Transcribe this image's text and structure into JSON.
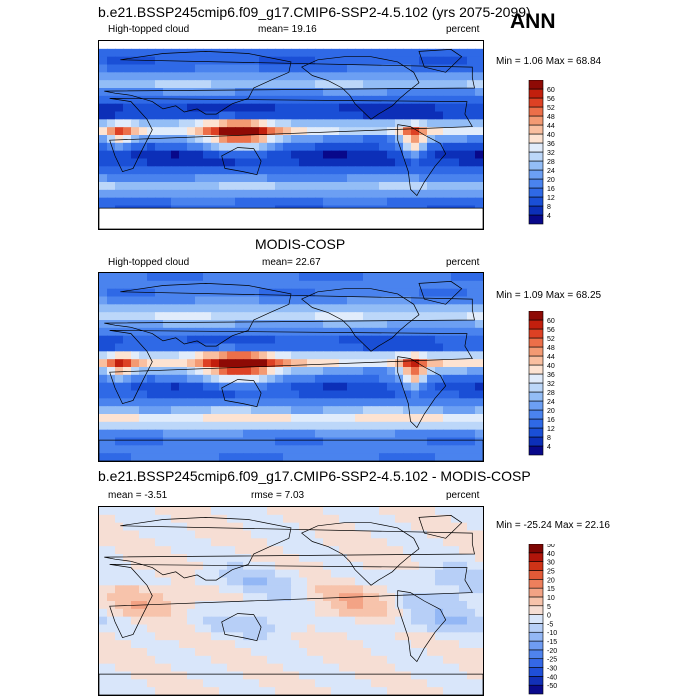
{
  "season_label": "ANN",
  "panels": [
    {
      "title": "b.e21.BSSP245cmip6.f09_g17.CMIP6-SSP2-4.5.102 (yrs 2075-2099)",
      "left_label": "High-topped cloud",
      "center_label": "mean=  19.16",
      "right_label": "percent",
      "minmax": "Min =  1.06 Max = 68.84"
    },
    {
      "title": "MODIS-COSP",
      "left_label": "High-topped cloud",
      "center_label": "mean=  22.67",
      "right_label": "percent",
      "minmax": "Min =  1.09 Max = 68.25"
    },
    {
      "title": "b.e21.BSSP245cmip6.f09_g17.CMIP6-SSP2-4.5.102 - MODIS-COSP",
      "left_label": "mean =  -3.51",
      "center_label": "rmse =  7.03",
      "right_label": "percent",
      "minmax": "Min = -25.24 Max = 22.16"
    }
  ],
  "chart_data": [
    {
      "type": "heatmap",
      "title": "b.e21.BSSP245cmip6.f09_g17.CMIP6-SSP2-4.5.102 (yrs 2075-2099)",
      "variable": "High-topped cloud",
      "units": "percent",
      "mean": 19.16,
      "min": 1.06,
      "max": 68.84,
      "colorbar_levels": [
        4,
        8,
        12,
        16,
        20,
        24,
        28,
        32,
        36,
        40,
        44,
        48,
        52,
        56,
        60
      ],
      "colorbar_colors": [
        "#08088a",
        "#0c2fb8",
        "#1a4fd6",
        "#2f69e6",
        "#4a83ee",
        "#6c9ff3",
        "#93bdf6",
        "#bcd7f9",
        "#e1ecfb",
        "#fde3d2",
        "#f9bfa0",
        "#f39a73",
        "#ec6f49",
        "#dd4124",
        "#c21f0d",
        "#8e0a05"
      ]
    },
    {
      "type": "heatmap",
      "title": "MODIS-COSP",
      "variable": "High-topped cloud",
      "units": "percent",
      "mean": 22.67,
      "min": 1.09,
      "max": 68.25,
      "colorbar_levels": [
        4,
        8,
        12,
        16,
        20,
        24,
        28,
        32,
        36,
        40,
        44,
        48,
        52,
        56,
        60
      ],
      "colorbar_colors": [
        "#08088a",
        "#0c2fb8",
        "#1a4fd6",
        "#2f69e6",
        "#4a83ee",
        "#6c9ff3",
        "#93bdf6",
        "#bcd7f9",
        "#e1ecfb",
        "#fde3d2",
        "#f9bfa0",
        "#f39a73",
        "#ec6f49",
        "#dd4124",
        "#c21f0d",
        "#8e0a05"
      ]
    },
    {
      "type": "heatmap",
      "title": "b.e21.BSSP245cmip6.f09_g17.CMIP6-SSP2-4.5.102 - MODIS-COSP",
      "units": "percent",
      "mean": -3.51,
      "rmse": 7.03,
      "min": -25.24,
      "max": 22.16,
      "colorbar_levels": [
        -50,
        -40,
        -30,
        -25,
        -20,
        -15,
        -10,
        -5,
        0,
        5,
        10,
        15,
        20,
        25,
        30,
        40,
        50
      ],
      "colorbar_colors": [
        "#0a0a8c",
        "#1230b8",
        "#1f4fd8",
        "#3468e6",
        "#4f83ee",
        "#6f9cf2",
        "#93b7f5",
        "#b7cff7",
        "#d9e6fa",
        "#f6ded4",
        "#f7c3ab",
        "#f3a385",
        "#ed7f5c",
        "#e35a37",
        "#cf3317",
        "#b0150a",
        "#7e0502"
      ]
    }
  ]
}
